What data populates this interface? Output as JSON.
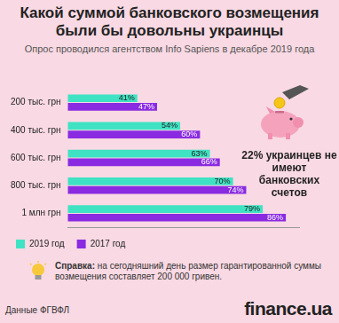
{
  "chart_data": {
    "type": "bar",
    "orientation": "horizontal",
    "title": "Какой суммой банковского возмещения были бы довольны украинцы",
    "subtitle": "Опрос проводился агентством Info Sapiens в декабре 2019 года",
    "categories": [
      "200 тыс. грн",
      "400 тыс. грн",
      "600 тыс. грн",
      "800 тыс. грн",
      "1 млн грн"
    ],
    "series": [
      {
        "name": "2019 год",
        "color": "#3fe3c3",
        "values": [
          41,
          54,
          63,
          70,
          79
        ],
        "value_labels": [
          "41%",
          "54%",
          "63%",
          "70%",
          "79%"
        ]
      },
      {
        "name": "2017 год",
        "color": "#8a2be2",
        "values": [
          47,
          60,
          66,
          74,
          86
        ],
        "value_labels": [
          "47%",
          "60%",
          "66%",
          "74%",
          "86%"
        ]
      }
    ],
    "xlim": [
      20,
      90
    ],
    "tick_labels": "y",
    "grid": false,
    "legend": "bottom",
    "data_labels": true,
    "annotations": [
      "22% украинцев не имеют банковских счетов",
      "Справка: на сегодняшний день размер гарантированной суммы возмещения составляет 200 000 гривен.",
      "Данные ФГВФЛ",
      "finance.ua"
    ]
  }
}
